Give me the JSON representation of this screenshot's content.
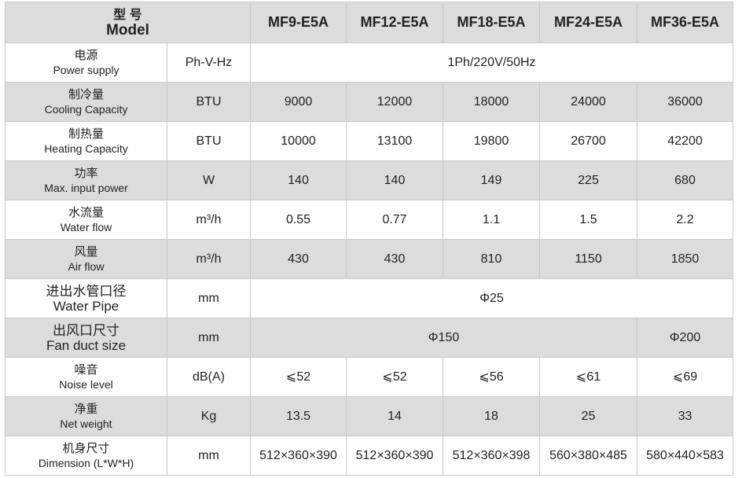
{
  "header": {
    "title_cn": "型 号",
    "title_en": "Model",
    "models": [
      "MF9-E5A",
      "MF12-E5A",
      "MF18-E5A",
      "MF24-E5A",
      "MF36-E5A"
    ]
  },
  "rows": [
    {
      "label_cn": "电源",
      "label_en": "Power supply",
      "unit": "Ph-V-Hz",
      "values": [
        "1Ph/220V/50Hz"
      ]
    },
    {
      "label_cn": "制冷量",
      "label_en": "Cooling Capacity",
      "unit": "BTU",
      "values": [
        "9000",
        "12000",
        "18000",
        "24000",
        "36000"
      ]
    },
    {
      "label_cn": "制热量",
      "label_en": "Heating Capacity",
      "unit": "BTU",
      "values": [
        "10000",
        "13100",
        "19800",
        "26700",
        "42200"
      ]
    },
    {
      "label_cn": "功率",
      "label_en": "Max. input power",
      "unit": "W",
      "values": [
        "140",
        "140",
        "149",
        "225",
        "680"
      ]
    },
    {
      "label_cn": "水流量",
      "label_en": "Water flow",
      "unit": "m³/h",
      "values": [
        "0.55",
        "0.77",
        "1.1",
        "1.5",
        "2.2"
      ]
    },
    {
      "label_cn": "风量",
      "label_en": "Air flow",
      "unit": "m³/h",
      "values": [
        "430",
        "430",
        "810",
        "1150",
        "1850"
      ]
    },
    {
      "label_cn": "进出水管口径",
      "label_en": "Water Pipe",
      "unit": "mm",
      "values": [
        "Φ25"
      ]
    },
    {
      "label_cn": "出风口尺寸",
      "label_en": "Fan duct size",
      "unit": "mm",
      "values": [
        "Φ150",
        "Φ200"
      ]
    },
    {
      "label_cn": "噪音",
      "label_en": "Noise level",
      "unit": "dB(A)",
      "values": [
        "⩽52",
        "⩽52",
        "⩽56",
        "⩽61",
        "⩽69"
      ]
    },
    {
      "label_cn": "净重",
      "label_en": "Net weight",
      "unit": "Kg",
      "values": [
        "13.5",
        "14",
        "18",
        "25",
        "33"
      ]
    },
    {
      "label_cn": "机身尺寸",
      "label_en": "Dimension (L*W*H)",
      "unit": "mm",
      "values": [
        "512×360×390",
        "512×360×390",
        "512×360×398",
        "560×380×485",
        "580×440×583"
      ]
    }
  ]
}
